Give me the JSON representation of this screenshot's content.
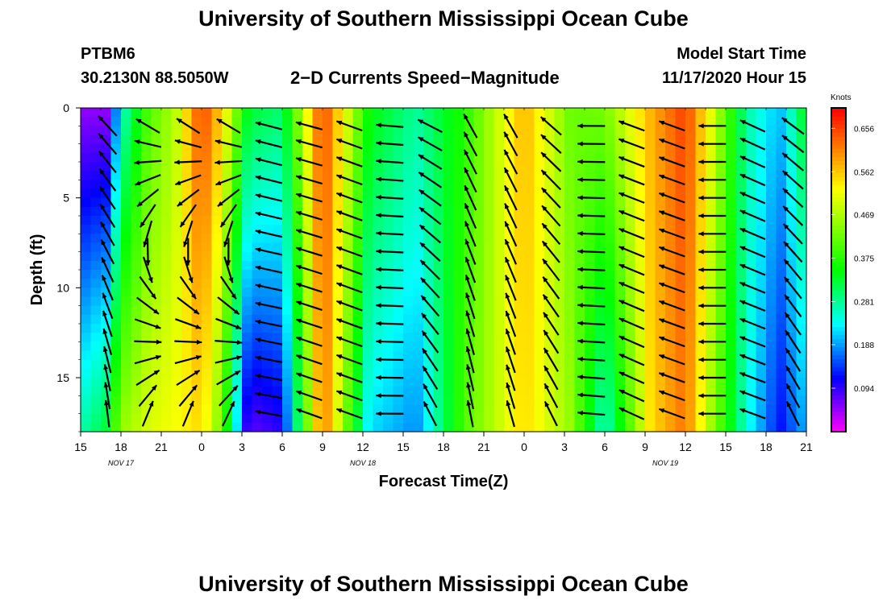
{
  "header": {
    "title": "University of Southern Mississippi Ocean Cube",
    "station": "PTBM6",
    "location": "30.2130N 88.5050W",
    "chart_title": "2−D Currents Speed−Magnitude",
    "model_start_label": "Model Start Time",
    "model_start_value": "11/17/2020 Hour 15"
  },
  "footer": {
    "title": "University of Southern Mississippi Ocean Cube"
  },
  "colors": {
    "low": "#ff00ff",
    "mid": "#00ff00",
    "high": "#ff0000"
  },
  "chart_data": {
    "type": "heatmap",
    "title": "2-D Currents Speed-Magnitude",
    "xlabel": "Forecast Time(Z)",
    "ylabel": "Depth (ft)",
    "x_tick_labels": [
      "15",
      "18",
      "21",
      "0",
      "3",
      "6",
      "9",
      "12",
      "15",
      "18",
      "21",
      "0",
      "3",
      "6",
      "9",
      "12",
      "15",
      "18",
      "21"
    ],
    "x_range_hours": [
      0,
      54
    ],
    "date_labels": [
      {
        "label": "NOV 17",
        "hour": 3
      },
      {
        "label": "NOV 18",
        "hour": 21
      },
      {
        "label": "NOV 19",
        "hour": 43.5
      }
    ],
    "y_ticks": [
      0,
      5,
      10,
      15
    ],
    "ylim": [
      18,
      0
    ],
    "colorbar": {
      "label": "Knots",
      "ticks": [
        0.094,
        0.188,
        0.281,
        0.375,
        0.469,
        0.562,
        0.656
      ],
      "range": [
        0.0,
        0.7
      ]
    },
    "depth_levels_ft": [
      1,
      2,
      3,
      4,
      5,
      6,
      7,
      8,
      9,
      10,
      11,
      12,
      13,
      14,
      15,
      16,
      17
    ],
    "speed_profile": [
      {
        "hour": 0,
        "surface": 0.05,
        "bottom": 0.27
      },
      {
        "hour": 2,
        "surface": 0.05,
        "bottom": 0.33
      },
      {
        "hour": 3,
        "surface": 0.25,
        "bottom": 0.45
      },
      {
        "hour": 5,
        "surface": 0.4,
        "bottom": 0.5
      },
      {
        "hour": 7,
        "surface": 0.47,
        "bottom": 0.52
      },
      {
        "hour": 9,
        "surface": 0.66,
        "bottom": 0.55
      },
      {
        "hour": 10.5,
        "surface": 0.55,
        "bottom": 0.42
      },
      {
        "hour": 12.5,
        "surface": 0.33,
        "bottom": 0.07
      },
      {
        "hour": 15,
        "surface": 0.3,
        "bottom": 0.1
      },
      {
        "hour": 18,
        "surface": 0.66,
        "bottom": 0.63
      },
      {
        "hour": 21.5,
        "surface": 0.35,
        "bottom": 0.22
      },
      {
        "hour": 25,
        "surface": 0.28,
        "bottom": 0.18
      },
      {
        "hour": 28.5,
        "surface": 0.37,
        "bottom": 0.4
      },
      {
        "hour": 33,
        "surface": 0.58,
        "bottom": 0.55
      },
      {
        "hour": 36.5,
        "surface": 0.42,
        "bottom": 0.45
      },
      {
        "hour": 39,
        "surface": 0.43,
        "bottom": 0.25
      },
      {
        "hour": 42.5,
        "surface": 0.58,
        "bottom": 0.55
      },
      {
        "hour": 45,
        "surface": 0.66,
        "bottom": 0.62
      },
      {
        "hour": 47,
        "surface": 0.5,
        "bottom": 0.45
      },
      {
        "hour": 49.5,
        "surface": 0.28,
        "bottom": 0.25
      },
      {
        "hour": 52,
        "surface": 0.2,
        "bottom": 0.12
      },
      {
        "hour": 54,
        "surface": 0.35,
        "bottom": 0.2
      }
    ],
    "vector_columns": [
      {
        "hour": 2,
        "surface_dir": 315,
        "bottom_dir": 355
      },
      {
        "hour": 5,
        "surface_dir": 318,
        "bottom_dir": 5
      },
      {
        "hour": 8,
        "surface_dir": 320,
        "bottom_dir": 5
      },
      {
        "hour": 11,
        "surface_dir": 318,
        "bottom_dir": 8
      },
      {
        "hour": 14,
        "surface_dir": 285,
        "bottom_dir": 280
      },
      {
        "hour": 17,
        "surface_dir": 285,
        "bottom_dir": 290
      },
      {
        "hour": 20,
        "surface_dir": 290,
        "bottom_dir": 290
      },
      {
        "hour": 23,
        "surface_dir": 275,
        "bottom_dir": 270
      },
      {
        "hour": 26,
        "surface_dir": 295,
        "bottom_dir": 335
      },
      {
        "hour": 29,
        "surface_dir": 330,
        "bottom_dir": 350
      },
      {
        "hour": 32,
        "surface_dir": 330,
        "bottom_dir": 345
      },
      {
        "hour": 35,
        "surface_dir": 310,
        "bottom_dir": 335
      },
      {
        "hour": 38,
        "surface_dir": 270,
        "bottom_dir": 275
      },
      {
        "hour": 41,
        "surface_dir": 290,
        "bottom_dir": 295
      },
      {
        "hour": 44,
        "surface_dir": 290,
        "bottom_dir": 290
      },
      {
        "hour": 47,
        "surface_dir": 270,
        "bottom_dir": 270
      },
      {
        "hour": 50,
        "surface_dir": 295,
        "bottom_dir": 290
      },
      {
        "hour": 53,
        "surface_dir": 305,
        "bottom_dir": 335
      }
    ]
  }
}
